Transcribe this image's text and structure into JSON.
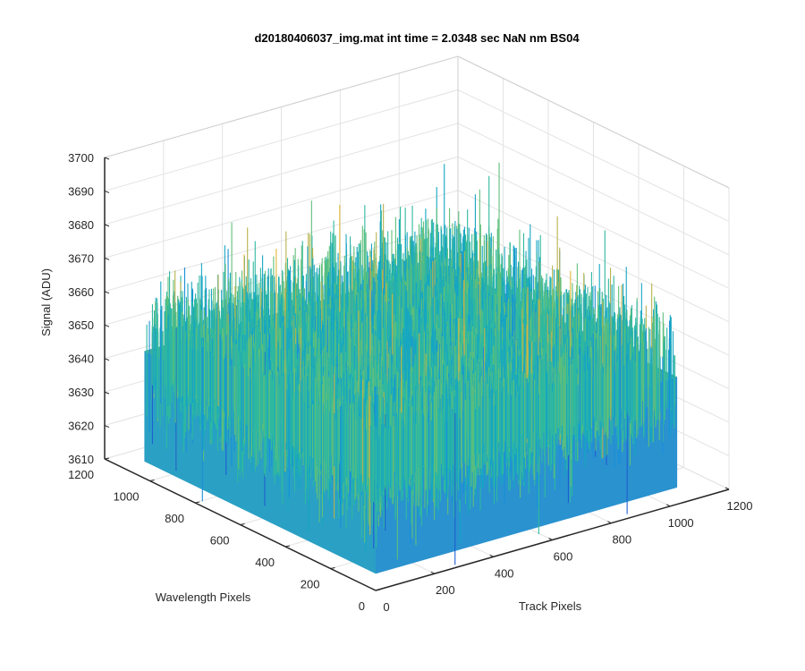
{
  "chart_data": {
    "type": "surface",
    "title": "d20180406037_img.mat int time = 2.0348 sec  NaN nm BS04",
    "xlabel": "Track Pixels",
    "ylabel": "Wavelength Pixels",
    "zlabel": "Signal (ADU)",
    "xlim": [
      0,
      1200
    ],
    "ylim": [
      0,
      1200
    ],
    "zlim": [
      3610,
      3700
    ],
    "x_ticks": [
      "0",
      "200",
      "400",
      "600",
      "800",
      "1000",
      "1200"
    ],
    "y_ticks": [
      "0",
      "200",
      "400",
      "600",
      "800",
      "1000",
      "1200"
    ],
    "z_ticks": [
      "3610",
      "3620",
      "3630",
      "3640",
      "3650",
      "3660",
      "3670",
      "3680",
      "3690",
      "3700"
    ],
    "data_extent": {
      "x": [
        0,
        1024
      ],
      "y": [
        0,
        1024
      ]
    },
    "signal_mean": 3648,
    "signal_range": [
      3615,
      3685
    ],
    "grid": true,
    "colormap": [
      "#1f5fd0",
      "#1a8fd8",
      "#16a6c2",
      "#2fb8a0",
      "#5fbf7a",
      "#b8b24e",
      "#e4b83a"
    ]
  }
}
